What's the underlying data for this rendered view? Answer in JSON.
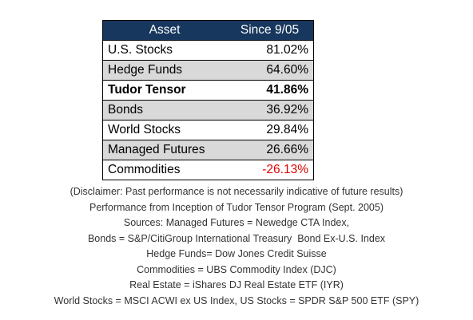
{
  "table": {
    "header": [
      "Asset",
      "Since 9/05"
    ],
    "rows": [
      [
        "U.S. Stocks",
        "81.02%"
      ],
      [
        "Hedge Funds",
        "64.60%"
      ],
      [
        "Tudor Tensor",
        "41.86%"
      ],
      [
        "Bonds",
        "36.92%"
      ],
      [
        "World Stocks",
        "29.84%"
      ],
      [
        "Managed Futures",
        "26.66%"
      ],
      [
        "Commodities",
        "-26.13%"
      ]
    ]
  },
  "notes": [
    "(Disclaimer: Past performance is not necessarily indicative of future results)",
    "Performance from Inception of Tudor Tensor Program (Sept. 2005)",
    "Sources: Managed Futures = Newedge CTA Index,",
    "Bonds = S&P/CitiGroup International Treasury  Bond Ex-U.S. Index",
    "Hedge Funds= Dow Jones Credit Suisse",
    "Commodities = UBS Commodity Index (DJC)",
    "Real Estate = iShares DJ Real Estate ETF (IYR)",
    "World Stocks = MSCI ACWI ex US Index, US Stocks = SPDR S&P 500 ETF (SPY)"
  ]
}
